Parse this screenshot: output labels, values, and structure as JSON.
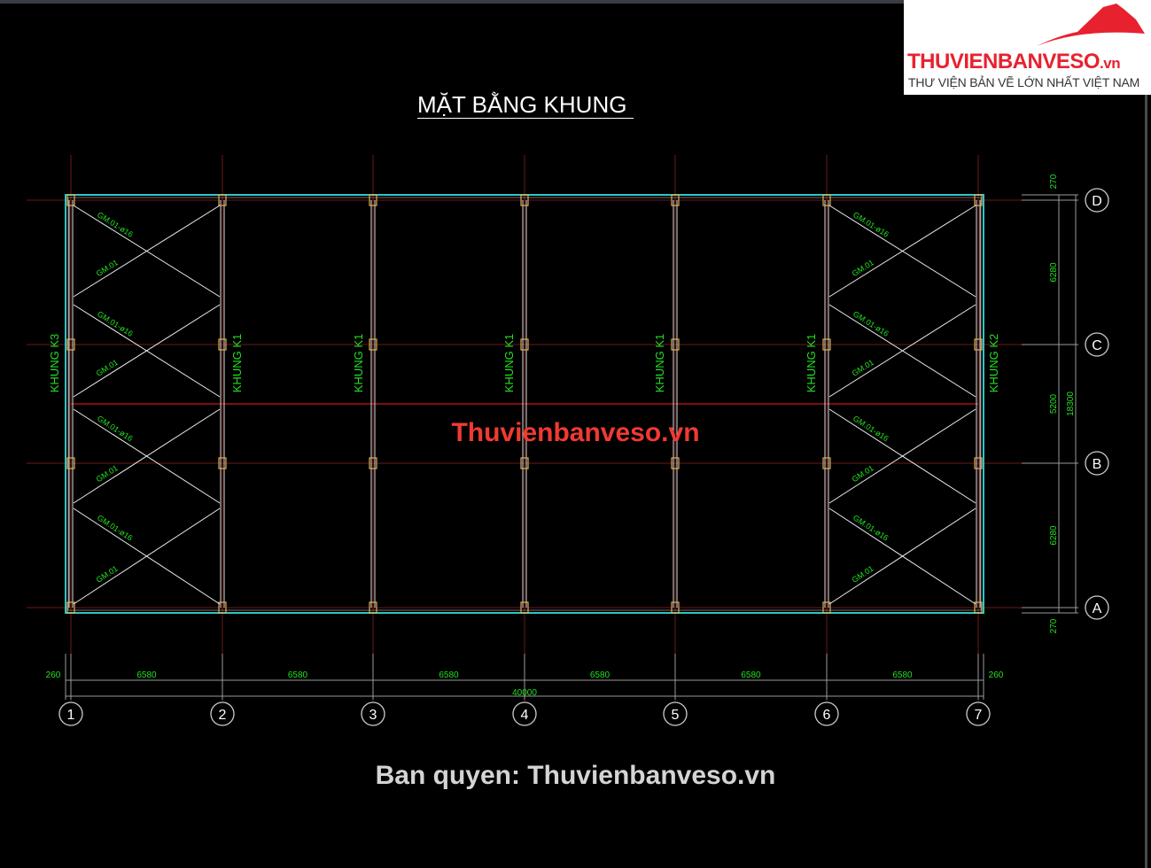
{
  "drawing_title": "MẶT BẰNG KHUNG",
  "logo": {
    "brand": "THUVIENBANVESO",
    "brand_suffix": ".vn",
    "tagline": "THƯ VIỆN BẢN VẼ LỚN NHẤT VIỆT NAM"
  },
  "watermark_center": "Thuvienbanveso.vn",
  "watermark_bottom": "Ban quyen: Thuvienbanveso.vn",
  "grid_x_labels": [
    "1",
    "2",
    "3",
    "4",
    "5",
    "6",
    "7"
  ],
  "grid_y_labels": [
    "D",
    "C",
    "B",
    "A"
  ],
  "frame_labels": [
    "KHUNG K3",
    "KHUNG K1",
    "KHUNG K1",
    "KHUNG K1",
    "KHUNG K1",
    "KHUNG K1",
    "KHUNG K2"
  ],
  "bracing_labels": {
    "diagonal_rod": "GM.01-ø16",
    "strut": "GM.01"
  },
  "dimensions_x": [
    "260",
    "6580",
    "6580",
    "6580",
    "6580",
    "6580",
    "6580",
    "260"
  ],
  "dimension_x_total": "40000",
  "dimensions_y": [
    "270",
    "6280",
    "5200",
    "6280",
    "270"
  ],
  "dimension_y_total": "18300",
  "colors": {
    "grid_axis": "#6a1a1a",
    "outline": "#2fc6c6",
    "text": "#22e022",
    "ridge": "#c81818",
    "watermark": "#f03a32"
  }
}
